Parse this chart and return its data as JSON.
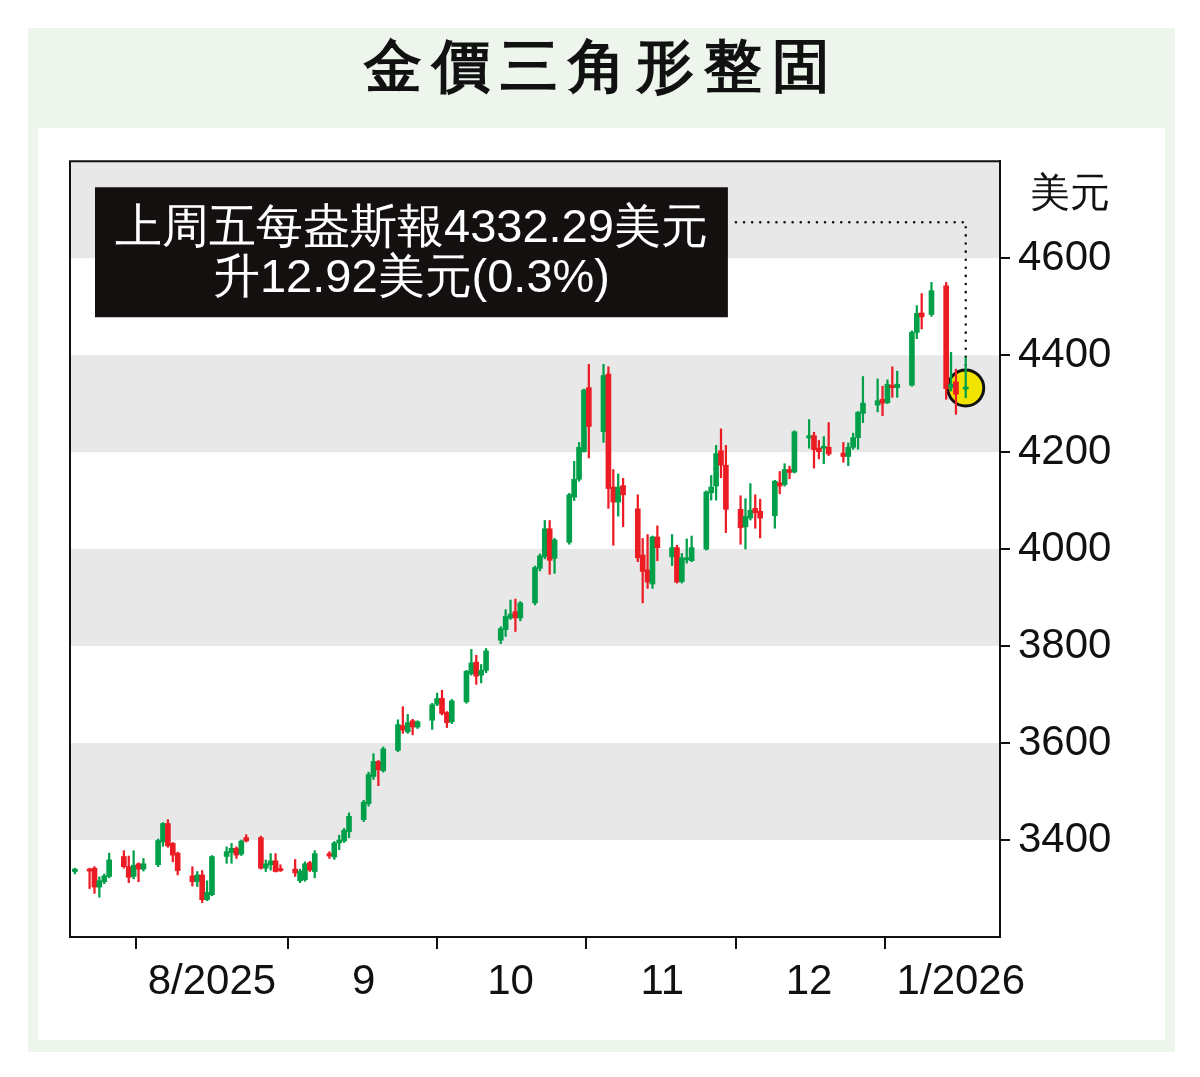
{
  "chart_data": {
    "type": "candlestick",
    "title": "金價三角形整固",
    "ylabel": "美元",
    "x": [
      "2025-07-04",
      "2025-07-07",
      "2025-07-08",
      "2025-07-09",
      "2025-07-10",
      "2025-07-11",
      "2025-07-14",
      "2025-07-15",
      "2025-07-16",
      "2025-07-17",
      "2025-07-18",
      "2025-07-21",
      "2025-07-22",
      "2025-07-23",
      "2025-07-24",
      "2025-07-25",
      "2025-07-28",
      "2025-07-29",
      "2025-07-30",
      "2025-07-31",
      "2025-08-01",
      "2025-08-04",
      "2025-08-05",
      "2025-08-06",
      "2025-08-07",
      "2025-08-08",
      "2025-08-11",
      "2025-08-12",
      "2025-08-13",
      "2025-08-14",
      "2025-08-15",
      "2025-08-18",
      "2025-08-19",
      "2025-08-20",
      "2025-08-21",
      "2025-08-22",
      "2025-08-25",
      "2025-08-26",
      "2025-08-27",
      "2025-08-28",
      "2025-08-29",
      "2025-09-01",
      "2025-09-02",
      "2025-09-03",
      "2025-09-04",
      "2025-09-05",
      "2025-09-08",
      "2025-09-09",
      "2025-09-10",
      "2025-09-11",
      "2025-09-12",
      "2025-09-15",
      "2025-09-16",
      "2025-09-17",
      "2025-09-18",
      "2025-09-19",
      "2025-09-22",
      "2025-09-23",
      "2025-09-24",
      "2025-09-25",
      "2025-09-26",
      "2025-09-29",
      "2025-09-30",
      "2025-10-01",
      "2025-10-02",
      "2025-10-03",
      "2025-10-06",
      "2025-10-07",
      "2025-10-08",
      "2025-10-09",
      "2025-10-10",
      "2025-10-13",
      "2025-10-14",
      "2025-10-15",
      "2025-10-16",
      "2025-10-17",
      "2025-10-20",
      "2025-10-21",
      "2025-10-22",
      "2025-10-23",
      "2025-10-24",
      "2025-10-27",
      "2025-10-28",
      "2025-10-29",
      "2025-10-30",
      "2025-10-31",
      "2025-11-03",
      "2025-11-04",
      "2025-11-05",
      "2025-11-06",
      "2025-11-07",
      "2025-11-10",
      "2025-11-11",
      "2025-11-12",
      "2025-11-13",
      "2025-11-14",
      "2025-11-17",
      "2025-11-18",
      "2025-11-19",
      "2025-11-20",
      "2025-11-21",
      "2025-11-24",
      "2025-11-25",
      "2025-11-26",
      "2025-11-27",
      "2025-11-28",
      "2025-12-01",
      "2025-12-02",
      "2025-12-03",
      "2025-12-04",
      "2025-12-05",
      "2025-12-08",
      "2025-12-09",
      "2025-12-10",
      "2025-12-11",
      "2025-12-12",
      "2025-12-15",
      "2025-12-16",
      "2025-12-17",
      "2025-12-18",
      "2025-12-19",
      "2025-12-22",
      "2025-12-23",
      "2025-12-24",
      "2025-12-26",
      "2025-12-29",
      "2025-12-30",
      "2025-12-31",
      "2026-01-02"
    ],
    "ohlc": [
      [
        3335,
        3342,
        3330,
        3340
      ],
      [
        3340,
        3342,
        3300,
        3336
      ],
      [
        3342,
        3345,
        3290,
        3303
      ],
      [
        3303,
        3324,
        3282,
        3316
      ],
      [
        3314,
        3330,
        3310,
        3326
      ],
      [
        3325,
        3373,
        3322,
        3359
      ],
      [
        3366,
        3378,
        3342,
        3345
      ],
      [
        3345,
        3367,
        3312,
        3323
      ],
      [
        3325,
        3378,
        3320,
        3348
      ],
      [
        3351,
        3353,
        3314,
        3340
      ],
      [
        3340,
        3362,
        3336,
        3351
      ],
      [
        3349,
        3402,
        3345,
        3399
      ],
      [
        3396,
        3436,
        3387,
        3434
      ],
      [
        3434,
        3442,
        3385,
        3388
      ],
      [
        3393,
        3395,
        3355,
        3369
      ],
      [
        3373,
        3375,
        3328,
        3337
      ],
      [
        3326,
        3345,
        3305,
        3314
      ],
      [
        3314,
        3335,
        3304,
        3328
      ],
      [
        3328,
        3337,
        3271,
        3277
      ],
      [
        3277,
        3316,
        3275,
        3292
      ],
      [
        3287,
        3368,
        3285,
        3366
      ],
      [
        3366,
        3386,
        3352,
        3376
      ],
      [
        3374,
        3393,
        3352,
        3383
      ],
      [
        3383,
        3386,
        3362,
        3369
      ],
      [
        3371,
        3400,
        3368,
        3398
      ],
      [
        3405,
        3411,
        3396,
        3398
      ],
      [
        3405,
        3408,
        3340,
        3342
      ],
      [
        3342,
        3359,
        3335,
        3351
      ],
      [
        3349,
        3372,
        3338,
        3357
      ],
      [
        3357,
        3372,
        3334,
        3335
      ],
      [
        3340,
        3349,
        3335,
        3337
      ],
      [
        3340,
        3360,
        3325,
        3332
      ],
      [
        3316,
        3340,
        3312,
        3336
      ],
      [
        3318,
        3355,
        3315,
        3351
      ],
      [
        3353,
        3356,
        3335,
        3338
      ],
      [
        3335,
        3378,
        3322,
        3372
      ],
      [
        3372,
        3376,
        3362,
        3367
      ],
      [
        3365,
        3397,
        3360,
        3394
      ],
      [
        3394,
        3410,
        3380,
        3400
      ],
      [
        3398,
        3424,
        3395,
        3420
      ],
      [
        3417,
        3456,
        3405,
        3449
      ],
      [
        3442,
        3482,
        3438,
        3478
      ],
      [
        3475,
        3540,
        3470,
        3535
      ],
      [
        3531,
        3578,
        3525,
        3562
      ],
      [
        3562,
        3564,
        3512,
        3545
      ],
      [
        3543,
        3592,
        3540,
        3588
      ],
      [
        3585,
        3648,
        3582,
        3638
      ],
      [
        3636,
        3675,
        3620,
        3627
      ],
      [
        3623,
        3659,
        3620,
        3642
      ],
      [
        3646,
        3649,
        3617,
        3633
      ],
      [
        3633,
        3646,
        3630,
        3644
      ],
      [
        3647,
        3682,
        3628,
        3679
      ],
      [
        3680,
        3703,
        3677,
        3692
      ],
      [
        3692,
        3709,
        3658,
        3661
      ],
      [
        3663,
        3665,
        3632,
        3642
      ],
      [
        3644,
        3690,
        3640,
        3687
      ],
      [
        3685,
        3750,
        3682,
        3748
      ],
      [
        3743,
        3793,
        3740,
        3765
      ],
      [
        3767,
        3781,
        3721,
        3738
      ],
      [
        3740,
        3762,
        3724,
        3750
      ],
      [
        3750,
        3795,
        3745,
        3790
      ],
      [
        3812,
        3840,
        3805,
        3836
      ],
      [
        3834,
        3875,
        3820,
        3861
      ],
      [
        3858,
        3895,
        3855,
        3866
      ],
      [
        3871,
        3897,
        3830,
        3858
      ],
      [
        3858,
        3892,
        3852,
        3889
      ],
      [
        3889,
        3965,
        3885,
        3962
      ],
      [
        3960,
        3990,
        3955,
        3986
      ],
      [
        3984,
        4059,
        3980,
        4042
      ],
      [
        4042,
        4059,
        3948,
        3977
      ],
      [
        3981,
        4022,
        3950,
        4019
      ],
      [
        4014,
        4115,
        4010,
        4112
      ],
      [
        4107,
        4181,
        4100,
        4144
      ],
      [
        4144,
        4220,
        4140,
        4210
      ],
      [
        4201,
        4330,
        4200,
        4328
      ],
      [
        4333,
        4381,
        4188,
        4253
      ],
      [
        4242,
        4381,
        4220,
        4358
      ],
      [
        4361,
        4376,
        4084,
        4125
      ],
      [
        4128,
        4164,
        4008,
        4097
      ],
      [
        4097,
        4155,
        4068,
        4128
      ],
      [
        4131,
        4146,
        4046,
        4112
      ],
      [
        4083,
        4112,
        3974,
        3982
      ],
      [
        3988,
        4022,
        3889,
        3954
      ],
      [
        3957,
        4030,
        3919,
        3932
      ],
      [
        3928,
        4027,
        3919,
        4025
      ],
      [
        4025,
        4048,
        3976,
        4003
      ],
      [
        3984,
        4030,
        3966,
        4003
      ],
      [
        4003,
        4008,
        3930,
        3932
      ],
      [
        3933,
        3991,
        3930,
        3982
      ],
      [
        3978,
        4021,
        3971,
        3981
      ],
      [
        3976,
        4027,
        3974,
        4003
      ],
      [
        4000,
        4120,
        3998,
        4118
      ],
      [
        4116,
        4152,
        4101,
        4128
      ],
      [
        4130,
        4214,
        4101,
        4197
      ],
      [
        4203,
        4248,
        4147,
        4173
      ],
      [
        4173,
        4214,
        4034,
        4082
      ],
      [
        4082,
        4110,
        4010,
        4044
      ],
      [
        4046,
        4104,
        4000,
        4067
      ],
      [
        4064,
        4135,
        4060,
        4080
      ],
      [
        4084,
        4112,
        4043,
        4075
      ],
      [
        4078,
        4103,
        4023,
        4064
      ],
      [
        4069,
        4142,
        4043,
        4140
      ],
      [
        4137,
        4160,
        4114,
        4130
      ],
      [
        4133,
        4176,
        4130,
        4164
      ],
      [
        4164,
        4171,
        4145,
        4158
      ],
      [
        4159,
        4244,
        4157,
        4242
      ],
      [
        4229,
        4267,
        4208,
        4234
      ],
      [
        4234,
        4241,
        4167,
        4205
      ],
      [
        4208,
        4224,
        4186,
        4201
      ],
      [
        4208,
        4232,
        4176,
        4212
      ],
      [
        4210,
        4261,
        4193,
        4196
      ],
      [
        4198,
        4220,
        4179,
        4191
      ],
      [
        4191,
        4219,
        4172,
        4210
      ],
      [
        4210,
        4239,
        4206,
        4230
      ],
      [
        4230,
        4284,
        4206,
        4282
      ],
      [
        4280,
        4356,
        4261,
        4301
      ],
      [
        4297,
        4351,
        4283,
        4306
      ],
      [
        4309,
        4336,
        4275,
        4301
      ],
      [
        4302,
        4349,
        4300,
        4340
      ],
      [
        4338,
        4376,
        4313,
        4333
      ],
      [
        4333,
        4367,
        4313,
        4340
      ],
      [
        4338,
        4450,
        4336,
        4447
      ],
      [
        4447,
        4502,
        4434,
        4486
      ],
      [
        4487,
        4527,
        4454,
        4479
      ],
      [
        4484,
        4550,
        4480,
        4533
      ],
      [
        4543,
        4550,
        4309,
        4331
      ],
      [
        4333,
        4406,
        4326,
        4340
      ],
      [
        4345,
        4371,
        4278,
        4319.37
      ],
      [
        4330,
        4395,
        4312,
        4332.29
      ]
    ],
    "xlim": [
      "2025-07-03",
      "2026-01-09"
    ],
    "xticks": [
      {
        "value": "2025-08-01",
        "label": "8/2025"
      },
      {
        "value": "2025-09-01",
        "label": "9"
      },
      {
        "value": "2025-10-01",
        "label": "10"
      },
      {
        "value": "2025-11-01",
        "label": "11"
      },
      {
        "value": "2025-12-01",
        "label": "12"
      },
      {
        "value": "2026-01-01",
        "label": "1/2026"
      }
    ],
    "ylim": [
      3200,
      4800
    ],
    "yticks": [
      3400,
      3600,
      3800,
      4000,
      4200,
      4400,
      4600
    ],
    "bands": [
      {
        "axis": "y",
        "from": 3400,
        "to": 3600,
        "color": "#e8e8e8"
      },
      {
        "axis": "y",
        "from": 3800,
        "to": 4000,
        "color": "#e8e8e8"
      },
      {
        "axis": "y",
        "from": 4200,
        "to": 4400,
        "color": "#e8e8e8"
      },
      {
        "axis": "y",
        "from": 4600,
        "to": 4800,
        "color": "#e8e8e8"
      }
    ],
    "annotations": [
      {
        "text": "上周五每盎斯報4332.29美元升12.92美元(0.3%)",
        "x": "2026-01-02",
        "y": 4332.29
      }
    ],
    "series": [
      {
        "type": "scatter",
        "x": [
          "2026-01-02"
        ],
        "values": [
          4332.29
        ],
        "color": "#f0e400"
      }
    ],
    "marker": "circle",
    "grid": false,
    "legend": false
  }
}
